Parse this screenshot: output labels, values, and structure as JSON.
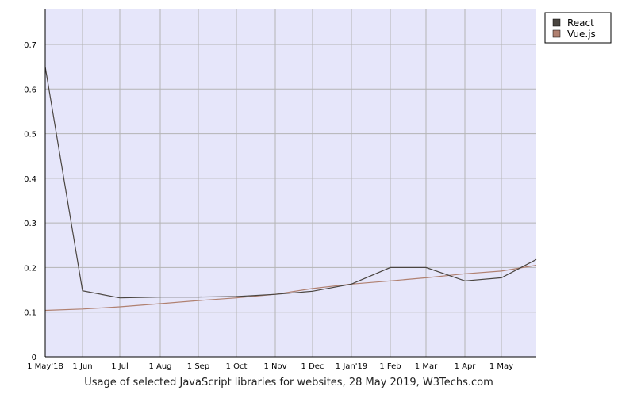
{
  "chart_data": {
    "type": "line",
    "caption": "Usage of selected JavaScript libraries for websites, 28 May 2019, W3Techs.com",
    "x_labels": [
      "1 May'18",
      "1 Jun",
      "1 Jul",
      "1 Aug",
      "1 Sep",
      "1 Oct",
      "1 Nov",
      "1 Dec",
      "1 Jan'19",
      "1 Feb",
      "1 Mar",
      "1 Apr",
      "1 May"
    ],
    "x_end": "28 May 2019",
    "ylim": [
      0,
      0.78
    ],
    "y_ticks": [
      "0",
      "0.1",
      "0.2",
      "0.3",
      "0.4",
      "0.5",
      "0.6",
      "0.7"
    ],
    "grid": true,
    "legend_position": "top-right",
    "series": [
      {
        "name": "React",
        "color": "#4a4540",
        "values": [
          0.65,
          0.148,
          0.132,
          0.134,
          0.134,
          0.135,
          0.14,
          0.147,
          0.163,
          0.2,
          0.2,
          0.17,
          0.177,
          0.218
        ]
      },
      {
        "name": "Vue.js",
        "color": "#b08070",
        "values": [
          0.104,
          0.107,
          0.112,
          0.119,
          0.126,
          0.132,
          0.14,
          0.153,
          0.163,
          0.17,
          0.177,
          0.186,
          0.192,
          0.205
        ]
      }
    ]
  }
}
